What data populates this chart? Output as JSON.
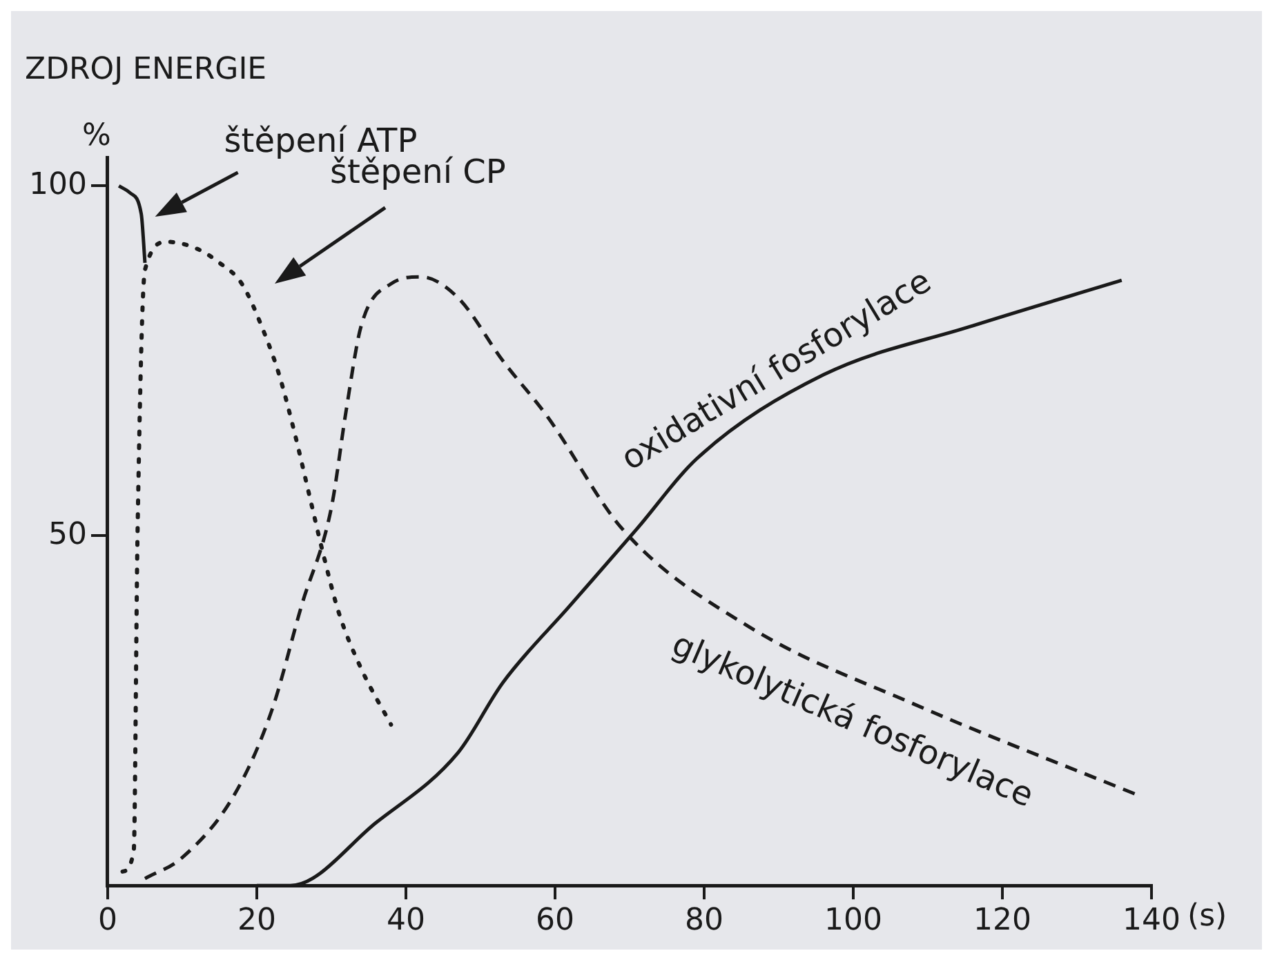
{
  "chart_data": {
    "type": "line",
    "title": "ZDROJ ENERGIE",
    "xlabel": "(s)",
    "ylabel": "%",
    "xlim": [
      0,
      140
    ],
    "xticks": [
      0,
      20,
      40,
      60,
      80,
      100,
      120,
      140
    ],
    "ylim": [
      0,
      104
    ],
    "yticks": [
      50,
      100
    ],
    "grid": false,
    "legend": false,
    "marker": "none",
    "series": [
      {
        "name": "štěpení ATP",
        "color": "#1a1a1a",
        "line_style": "solid",
        "x": [
          1.5,
          3,
          4.5,
          5
        ],
        "values": [
          100,
          99,
          96,
          89
        ]
      },
      {
        "name": "štěpení CP",
        "color": "#1a1a1a",
        "line_style": "dotted",
        "x": [
          2,
          3.5,
          4,
          5,
          8,
          12,
          15,
          18,
          21,
          23,
          25,
          27,
          29,
          31,
          34,
          38
        ],
        "values": [
          2,
          5,
          50,
          88,
          92,
          91,
          89,
          86,
          79,
          73,
          65,
          56,
          47,
          39,
          31,
          23
        ]
      },
      {
        "name": "glykolytická fosforylace",
        "color": "#1a1a1a",
        "line_style": "dashed",
        "x": [
          5,
          10,
          17,
          22,
          26,
          30,
          32,
          34,
          38,
          42,
          47,
          53,
          59,
          69,
          86,
          108,
          138
        ],
        "values": [
          1,
          4,
          13,
          25,
          40,
          54,
          68,
          80,
          86,
          87,
          84,
          75,
          67,
          51,
          37,
          26,
          13
        ]
      },
      {
        "name": "oxidativní fosforylace",
        "color": "#1a1a1a",
        "line_style": "solid",
        "x": [
          20,
          24.5,
          36,
          47,
          53,
          62,
          71,
          79,
          96,
          116,
          136
        ],
        "values": [
          0,
          0,
          9,
          19,
          29,
          40,
          51,
          61,
          73,
          80,
          86.5
        ]
      }
    ]
  }
}
